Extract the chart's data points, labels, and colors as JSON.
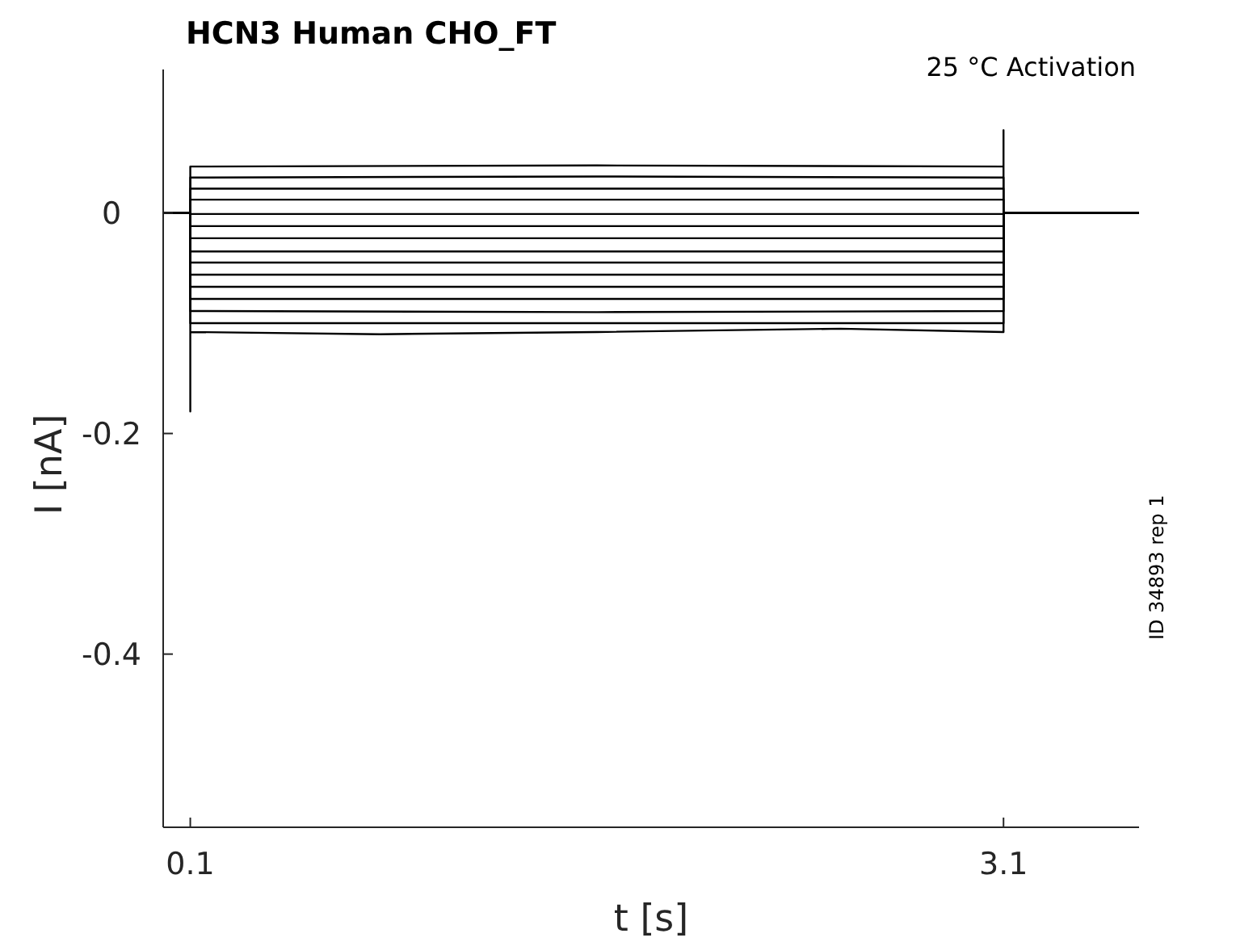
{
  "chart_data": {
    "type": "line",
    "title": "HCN3  Human  CHO_FT",
    "xlabel": "t [s]",
    "ylabel": "I [nA]",
    "annotations": [
      "25 °C  Activation",
      "ID 34893 rep 1"
    ],
    "xlim": [
      0,
      3.6
    ],
    "ylim": [
      -0.557,
      0.13
    ],
    "xticks": [
      0.1,
      3.1
    ],
    "yticks": [
      0,
      -0.2,
      -0.4
    ],
    "grid": false,
    "marker": "none",
    "line_style": "solid",
    "series": [
      {
        "color": "#000000",
        "x": [
          0,
          0.1,
          0.1,
          1.6,
          3.1,
          3.1,
          3.1,
          3.6
        ],
        "values": [
          0,
          0,
          0.042,
          0.043,
          0.042,
          0.075,
          0,
          0
        ]
      },
      {
        "color": "#000000",
        "x": [
          0,
          0.1,
          0.1,
          1.6,
          3.1,
          3.1,
          3.6
        ],
        "values": [
          0,
          0,
          0.032,
          0.033,
          0.032,
          0,
          0
        ]
      },
      {
        "color": "#000000",
        "x": [
          0,
          0.1,
          0.1,
          1.6,
          3.1,
          3.1,
          3.6
        ],
        "values": [
          0,
          0,
          0.022,
          0.022,
          0.022,
          0,
          0
        ]
      },
      {
        "color": "#000000",
        "x": [
          0,
          0.1,
          0.1,
          1.6,
          3.1,
          3.1,
          3.6
        ],
        "values": [
          0,
          0,
          0.012,
          0.012,
          0.012,
          0,
          0
        ]
      },
      {
        "color": "#000000",
        "x": [
          0,
          0.1,
          0.1,
          1.6,
          3.1,
          3.1,
          3.6
        ],
        "values": [
          0,
          0,
          -0.001,
          -0.001,
          -0.001,
          0,
          0
        ]
      },
      {
        "color": "#000000",
        "x": [
          0,
          0.1,
          0.1,
          1.6,
          3.1,
          3.1,
          3.6
        ],
        "values": [
          0,
          0,
          -0.012,
          -0.012,
          -0.012,
          0,
          0
        ]
      },
      {
        "color": "#000000",
        "x": [
          0,
          0.1,
          0.1,
          1.6,
          3.1,
          3.1,
          3.6
        ],
        "values": [
          0,
          0,
          -0.023,
          -0.023,
          -0.023,
          0,
          0
        ]
      },
      {
        "color": "#000000",
        "x": [
          0,
          0.1,
          0.1,
          1.6,
          3.1,
          3.1,
          3.6
        ],
        "values": [
          0,
          0,
          -0.035,
          -0.035,
          -0.035,
          0,
          0
        ]
      },
      {
        "color": "#000000",
        "x": [
          0,
          0.1,
          0.1,
          1.6,
          3.1,
          3.1,
          3.6
        ],
        "values": [
          0,
          0,
          -0.045,
          -0.045,
          -0.045,
          0,
          0
        ]
      },
      {
        "color": "#000000",
        "x": [
          0,
          0.1,
          0.1,
          1.6,
          3.1,
          3.1,
          3.6
        ],
        "values": [
          0,
          0,
          -0.056,
          -0.056,
          -0.056,
          0,
          0
        ]
      },
      {
        "color": "#000000",
        "x": [
          0,
          0.1,
          0.1,
          1.6,
          3.1,
          3.1,
          3.6
        ],
        "values": [
          0,
          0,
          -0.067,
          -0.067,
          -0.067,
          0,
          0
        ]
      },
      {
        "color": "#000000",
        "x": [
          0,
          0.1,
          0.1,
          1.6,
          3.1,
          3.1,
          3.6
        ],
        "values": [
          0,
          0,
          -0.078,
          -0.078,
          -0.078,
          0,
          0
        ]
      },
      {
        "color": "#000000",
        "x": [
          0,
          0.1,
          0.1,
          1.6,
          3.1,
          3.1,
          3.6
        ],
        "values": [
          0,
          0,
          -0.089,
          -0.09,
          -0.089,
          0,
          0
        ]
      },
      {
        "color": "#000000",
        "x": [
          0,
          0.1,
          0.1,
          1.6,
          3.1,
          3.1,
          3.6
        ],
        "values": [
          0,
          0,
          -0.1,
          -0.1,
          -0.1,
          0,
          0
        ]
      },
      {
        "color": "#000000",
        "x": [
          0,
          0.1,
          0.1,
          0.1,
          0.8,
          1.6,
          2.5,
          3.1,
          3.1,
          3.6
        ],
        "values": [
          0,
          0,
          -0.18,
          -0.108,
          -0.11,
          -0.108,
          -0.105,
          -0.108,
          0,
          0
        ]
      }
    ]
  }
}
